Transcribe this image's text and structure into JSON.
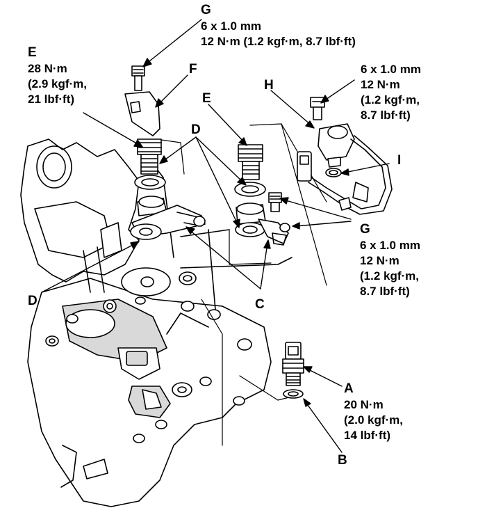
{
  "callouts": {
    "g_top": {
      "letter": "G",
      "spec": [
        "6 x 1.0 mm",
        "12 N·m (1.2 kgf·m, 8.7 lbf·ft)"
      ]
    },
    "e_left": {
      "letter": "E",
      "spec": [
        "28 N·m",
        "(2.9 kgf·m,",
        "21 lbf·ft)"
      ]
    },
    "f": {
      "letter": "F"
    },
    "e_mid": {
      "letter": "E"
    },
    "d_top": {
      "letter": "D"
    },
    "h": {
      "letter": "H"
    },
    "h_spec": {
      "spec": [
        "6 x 1.0 mm",
        "12 N·m",
        "(1.2 kgf·m,",
        "8.7 lbf·ft)"
      ]
    },
    "i": {
      "letter": "I"
    },
    "g_right": {
      "letter": "G",
      "spec": [
        "6 x 1.0 mm",
        "12 N·m",
        "(1.2 kgf·m,",
        "8.7 lbf·ft)"
      ]
    },
    "d_left": {
      "letter": "D"
    },
    "c": {
      "letter": "C"
    },
    "a": {
      "letter": "A",
      "spec": [
        "20 N·m",
        "(2.0 kgf·m,",
        "14 lbf·ft)"
      ]
    },
    "b": {
      "letter": "B"
    }
  },
  "colors": {
    "ink": "#000000",
    "paper": "#ffffff",
    "shade": "#d9d9d9"
  }
}
